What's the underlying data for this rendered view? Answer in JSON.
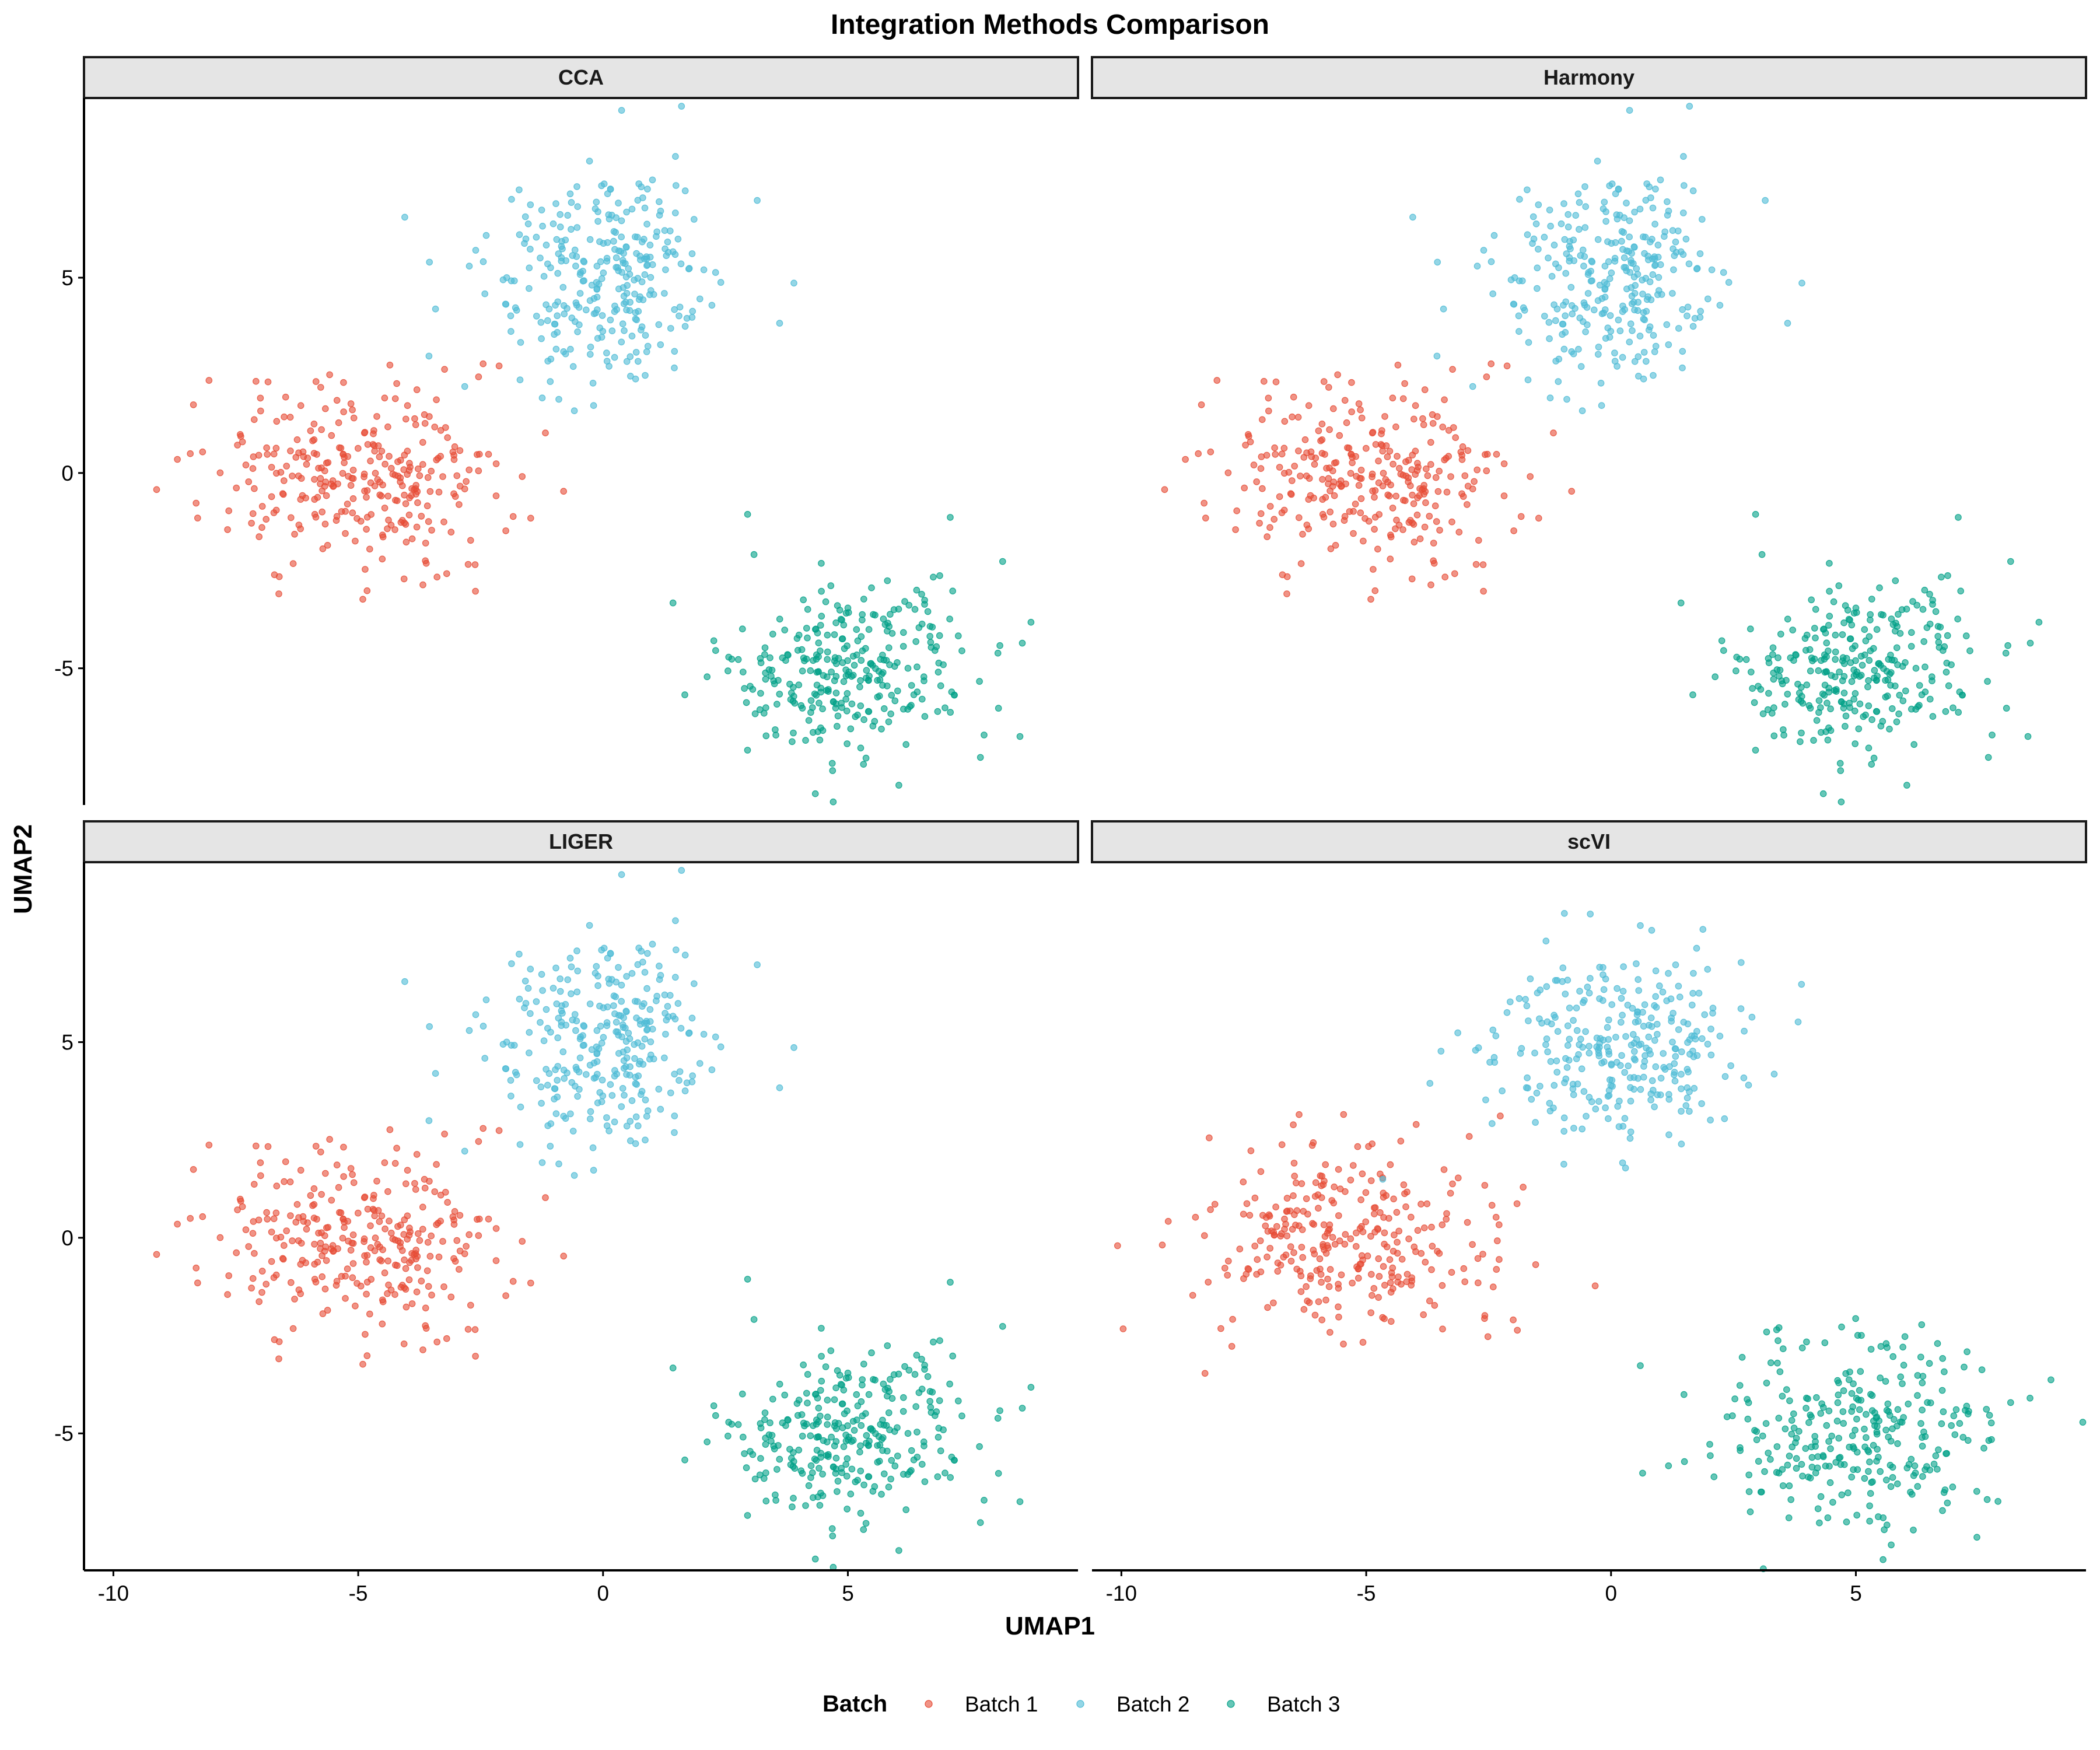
{
  "chart_data": {
    "type": "scatter",
    "title": "Integration Methods Comparison",
    "xlabel": "UMAP1",
    "ylabel": "UMAP2",
    "xlim": [
      -10.6,
      9.7
    ],
    "ylim": [
      -8.5,
      9.6
    ],
    "x_ticks": [
      -10,
      -5,
      0,
      5
    ],
    "x_tick_labels": [
      "-10",
      "-5",
      "0",
      "5"
    ],
    "y_ticks": [
      -5,
      0,
      5
    ],
    "y_tick_labels": [
      "-5",
      "0",
      "5"
    ],
    "grid": false,
    "facet_layout": "2x2",
    "legend": {
      "title": "Batch",
      "position": "bottom",
      "entries": [
        "Batch 1",
        "Batch 2",
        "Batch 3"
      ]
    },
    "colors": {
      "Batch 1": "#E64B35",
      "Batch 2": "#4DBBD5",
      "Batch 3": "#00A087"
    },
    "panels": [
      {
        "label": "CCA",
        "series": [
          {
            "name": "Batch 1",
            "center": [
              -5.0,
              0.0
            ],
            "spread": [
              1.5,
              1.2
            ],
            "n_points": 300
          },
          {
            "name": "Batch 2",
            "center": [
              0.0,
              5.0
            ],
            "spread": [
              1.2,
              1.3
            ],
            "n_points": 300
          },
          {
            "name": "Batch 3",
            "center": [
              5.0,
              -5.0
            ],
            "spread": [
              1.3,
              1.2
            ],
            "n_points": 300
          }
        ]
      },
      {
        "label": "Harmony",
        "series": [
          {
            "name": "Batch 1",
            "center": [
              -5.0,
              0.0
            ],
            "spread": [
              1.5,
              1.2
            ],
            "n_points": 300
          },
          {
            "name": "Batch 2",
            "center": [
              0.0,
              5.0
            ],
            "spread": [
              1.2,
              1.3
            ],
            "n_points": 300
          },
          {
            "name": "Batch 3",
            "center": [
              5.0,
              -5.0
            ],
            "spread": [
              1.3,
              1.2
            ],
            "n_points": 300
          }
        ]
      },
      {
        "label": "LIGER",
        "series": [
          {
            "name": "Batch 1",
            "center": [
              -5.0,
              0.0
            ],
            "spread": [
              1.5,
              1.2
            ],
            "n_points": 300
          },
          {
            "name": "Batch 2",
            "center": [
              0.0,
              5.0
            ],
            "spread": [
              1.2,
              1.3
            ],
            "n_points": 300
          },
          {
            "name": "Batch 3",
            "center": [
              5.0,
              -5.0
            ],
            "spread": [
              1.3,
              1.2
            ],
            "n_points": 300
          }
        ]
      },
      {
        "label": "scVI",
        "series": [
          {
            "name": "Batch 1",
            "center": [
              -5.5,
              0.0
            ],
            "spread": [
              1.6,
              1.2
            ],
            "n_points": 300
          },
          {
            "name": "Batch 2",
            "center": [
              0.0,
              5.0
            ],
            "spread": [
              1.3,
              1.3
            ],
            "n_points": 300
          },
          {
            "name": "Batch 3",
            "center": [
              5.0,
              -5.0
            ],
            "spread": [
              1.5,
              1.2
            ],
            "n_points": 300
          }
        ]
      }
    ]
  }
}
